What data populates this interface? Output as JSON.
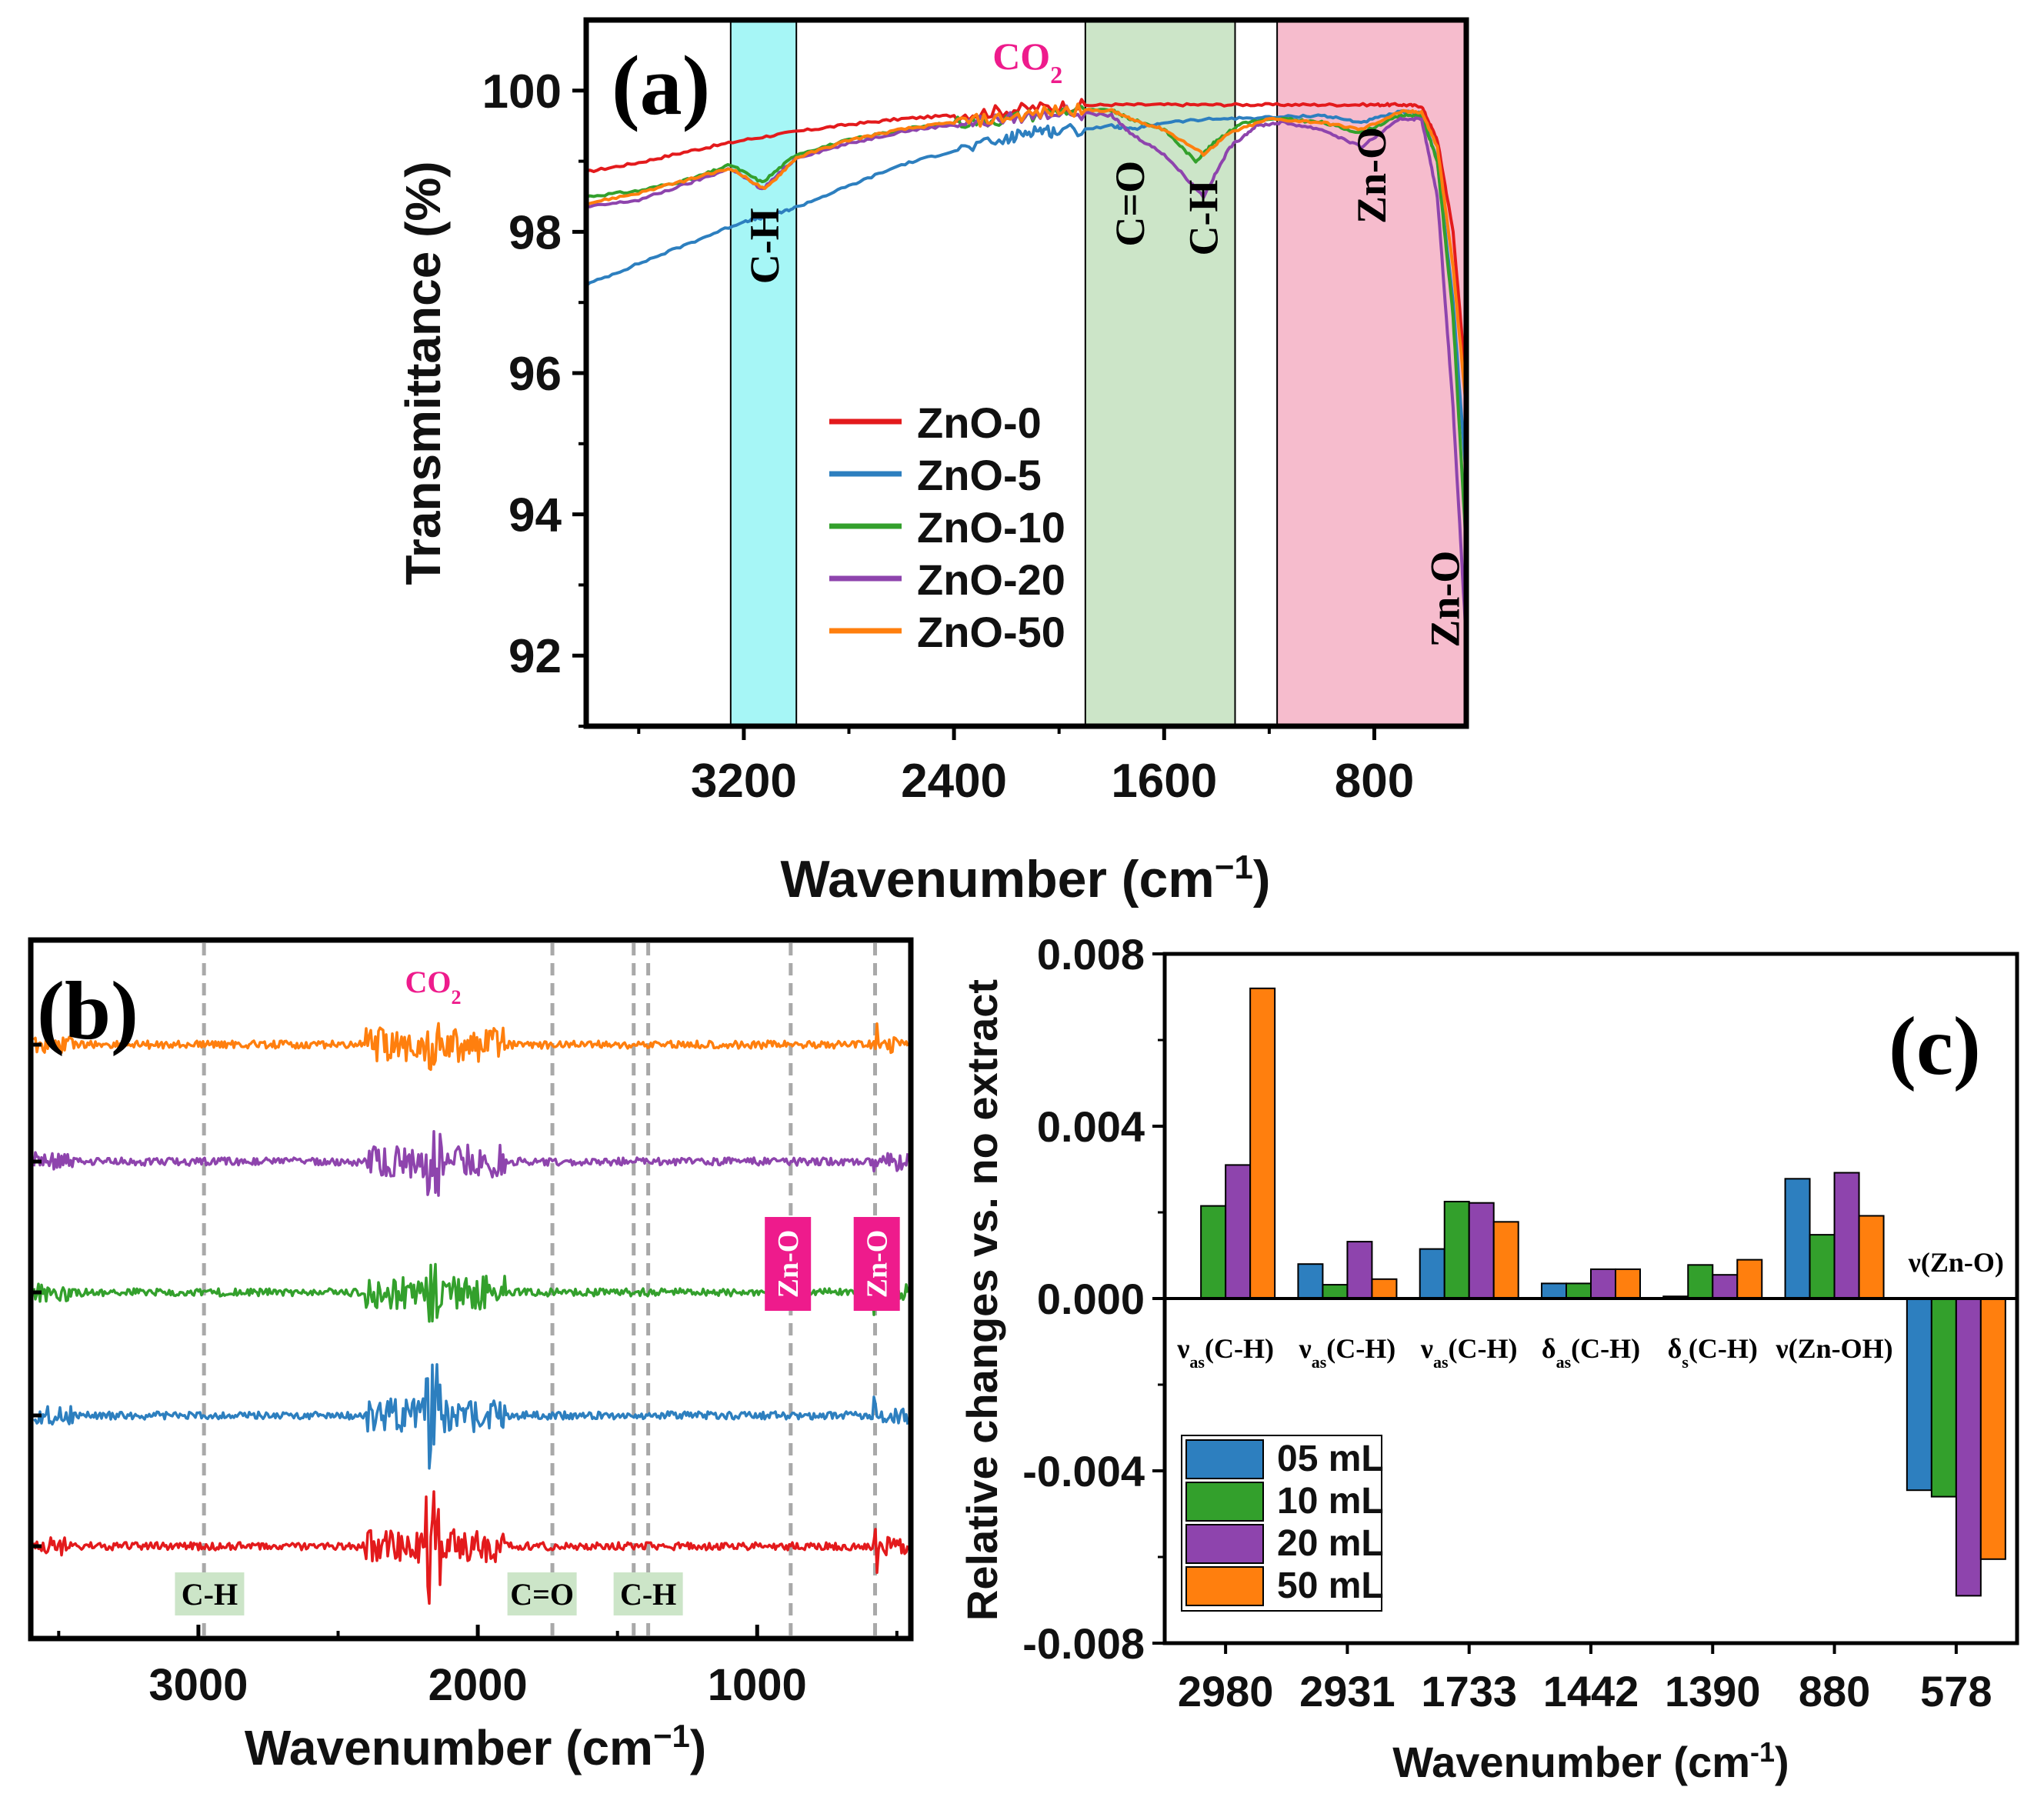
{
  "chart_data": [
    {
      "panel": "(a)",
      "type": "line",
      "xlabel": "Wavenumber (cm",
      "xlabel_sup": "−1",
      "xlabel_tail": ")",
      "ylabel": "Transmittance (%)",
      "xlim": [
        3800,
        450
      ],
      "ylim": [
        91,
        101
      ],
      "xticks": [
        {
          "v": 3200,
          "t": "3200"
        },
        {
          "v": 2400,
          "t": "2400"
        },
        {
          "v": 1600,
          "t": "1600"
        },
        {
          "v": 800,
          "t": "800"
        }
      ],
      "yticks": [
        {
          "v": 92,
          "t": "92"
        },
        {
          "v": 94,
          "t": "94"
        },
        {
          "v": 96,
          "t": "96"
        },
        {
          "v": 98,
          "t": "98"
        },
        {
          "v": 100,
          "t": "100"
        }
      ],
      "bands": [
        {
          "from": 3250,
          "to": 3000,
          "color": "#a6f6f6"
        },
        {
          "from": 1900,
          "to": 1330,
          "color": "#cce5c8"
        },
        {
          "from": 1170,
          "to": 450,
          "color": "#f6bccd"
        }
      ],
      "annotations": [
        {
          "text": "C-H",
          "x": 3120,
          "y": 97.8,
          "rotate": true
        },
        {
          "text": "C=O",
          "x": 1730,
          "y": 98.4,
          "rotate": true
        },
        {
          "text": "C-H",
          "x": 1450,
          "y": 98.2,
          "rotate": true
        },
        {
          "text": "Zn-O",
          "x": 810,
          "y": 98.8,
          "rotate": true
        },
        {
          "text": "Zn-O",
          "x": 530,
          "y": 92.8,
          "rotate": true
        }
      ],
      "co2_label": {
        "main": "CO",
        "sub": "2",
        "x": 2120,
        "y": 100.6
      },
      "series": [
        {
          "name": "ZnO-0",
          "color": "#e31a1c",
          "points": [
            [
              3800,
              98.85
            ],
            [
              3600,
              98.98
            ],
            [
              3400,
              99.15
            ],
            [
              3200,
              99.3
            ],
            [
              3000,
              99.42
            ],
            [
              2800,
              99.52
            ],
            [
              2600,
              99.6
            ],
            [
              2400,
              99.65
            ],
            [
              2200,
              99.72
            ],
            [
              2000,
              99.78
            ],
            [
              1800,
              99.8
            ],
            [
              1600,
              99.8
            ],
            [
              1400,
              99.8
            ],
            [
              1200,
              99.8
            ],
            [
              1000,
              99.8
            ],
            [
              800,
              99.8
            ],
            [
              700,
              99.8
            ],
            [
              620,
              99.78
            ],
            [
              560,
              99.3
            ],
            [
              500,
              98
            ],
            [
              450,
              95.8
            ]
          ]
        },
        {
          "name": "ZnO-5",
          "color": "#2d7fbf",
          "points": [
            [
              3800,
              97.25
            ],
            [
              3600,
              97.55
            ],
            [
              3400,
              97.85
            ],
            [
              3200,
              98.15
            ],
            [
              3100,
              98.22
            ],
            [
              3000,
              98.35
            ],
            [
              2800,
              98.65
            ],
            [
              2600,
              98.95
            ],
            [
              2400,
              99.15
            ],
            [
              2200,
              99.3
            ],
            [
              2100,
              99.45
            ],
            [
              2000,
              99.42
            ],
            [
              1800,
              99.5
            ],
            [
              1720,
              99.45
            ],
            [
              1600,
              99.55
            ],
            [
              1400,
              99.6
            ],
            [
              1200,
              99.62
            ],
            [
              1000,
              99.65
            ],
            [
              850,
              99.55
            ],
            [
              700,
              99.7
            ],
            [
              620,
              99.68
            ],
            [
              560,
              99
            ],
            [
              500,
              97
            ],
            [
              450,
              94.5
            ]
          ]
        },
        {
          "name": "ZnO-10",
          "color": "#33a02c",
          "points": [
            [
              3800,
              98.5
            ],
            [
              3600,
              98.58
            ],
            [
              3400,
              98.75
            ],
            [
              3250,
              98.95
            ],
            [
              3130,
              98.7
            ],
            [
              3000,
              99.1
            ],
            [
              2800,
              99.3
            ],
            [
              2600,
              99.45
            ],
            [
              2400,
              99.55
            ],
            [
              2200,
              99.6
            ],
            [
              2000,
              99.72
            ],
            [
              1800,
              99.72
            ],
            [
              1730,
              99.6
            ],
            [
              1600,
              99.45
            ],
            [
              1480,
              99
            ],
            [
              1400,
              99.3
            ],
            [
              1300,
              99.55
            ],
            [
              1150,
              99.6
            ],
            [
              1000,
              99.55
            ],
            [
              850,
              99.4
            ],
            [
              700,
              99.65
            ],
            [
              620,
              99.65
            ],
            [
              560,
              99
            ],
            [
              500,
              96.8
            ],
            [
              450,
              93.5
            ]
          ]
        },
        {
          "name": "ZnO-20",
          "color": "#8e44ad",
          "points": [
            [
              3800,
              98.35
            ],
            [
              3600,
              98.45
            ],
            [
              3400,
              98.7
            ],
            [
              3250,
              98.9
            ],
            [
              3130,
              98.6
            ],
            [
              3000,
              99.05
            ],
            [
              2800,
              99.25
            ],
            [
              2600,
              99.42
            ],
            [
              2400,
              99.52
            ],
            [
              2200,
              99.6
            ],
            [
              2000,
              99.7
            ],
            [
              1800,
              99.65
            ],
            [
              1730,
              99.4
            ],
            [
              1600,
              99.1
            ],
            [
              1450,
              98.5
            ],
            [
              1350,
              99.2
            ],
            [
              1250,
              99.5
            ],
            [
              1150,
              99.55
            ],
            [
              1000,
              99.45
            ],
            [
              850,
              99.2
            ],
            [
              700,
              99.6
            ],
            [
              620,
              99.6
            ],
            [
              560,
              98.5
            ],
            [
              500,
              95.5
            ],
            [
              450,
              92.2
            ]
          ]
        },
        {
          "name": "ZnO-50",
          "color": "#ff7f0e",
          "points": [
            [
              3800,
              98.4
            ],
            [
              3600,
              98.55
            ],
            [
              3400,
              98.75
            ],
            [
              3250,
              98.9
            ],
            [
              3120,
              98.6
            ],
            [
              3000,
              99.05
            ],
            [
              2800,
              99.3
            ],
            [
              2600,
              99.45
            ],
            [
              2400,
              99.55
            ],
            [
              2200,
              99.62
            ],
            [
              2000,
              99.72
            ],
            [
              1800,
              99.72
            ],
            [
              1730,
              99.6
            ],
            [
              1600,
              99.45
            ],
            [
              1450,
              99.1
            ],
            [
              1350,
              99.4
            ],
            [
              1200,
              99.6
            ],
            [
              1000,
              99.55
            ],
            [
              850,
              99.45
            ],
            [
              700,
              99.7
            ],
            [
              620,
              99.7
            ],
            [
              560,
              99.2
            ],
            [
              500,
              97.5
            ],
            [
              450,
              95.5
            ]
          ]
        }
      ],
      "legend": "center-left"
    },
    {
      "panel": "(b)",
      "type": "line",
      "xlabel": "Wavenumber (cm",
      "xlabel_sup": "−1",
      "xlabel_tail": ")",
      "xlim": [
        3600,
        450
      ],
      "xticks": [
        {
          "v": 3000,
          "t": "3000"
        },
        {
          "v": 2000,
          "t": "2000"
        },
        {
          "v": 1000,
          "t": "1000"
        }
      ],
      "dashed_lines": [
        2980,
        1733,
        1442,
        1390,
        880,
        578
      ],
      "co2_label": {
        "main": "CO",
        "sub": "2",
        "x": 2160
      },
      "labels_bottom": [
        {
          "text": "C-H",
          "x": 2960
        },
        {
          "text": "C=O",
          "x": 1770
        },
        {
          "text": "C-H",
          "x": 1390
        }
      ],
      "labels_pink": [
        {
          "text": "Zn-O",
          "x": 890
        },
        {
          "text": "Zn-O",
          "x": 572
        }
      ],
      "series": [
        {
          "name": "ZnO-50",
          "color": "#ff7f0e",
          "offset": 4
        },
        {
          "name": "ZnO-20",
          "color": "#8e44ad",
          "offset": 3
        },
        {
          "name": "ZnO-10",
          "color": "#33a02c",
          "offset": 2
        },
        {
          "name": "ZnO-5",
          "color": "#2d7fbf",
          "offset": 1
        },
        {
          "name": "ZnO-0",
          "color": "#e31a1c",
          "offset": 0
        }
      ]
    },
    {
      "panel": "(c)",
      "type": "bar",
      "xlabel": "Wavenumber (cm",
      "xlabel_sup": "-1",
      "xlabel_tail": ")",
      "ylabel": "Relative changes vs. no extract",
      "ylim": [
        -0.008,
        0.008
      ],
      "yticks": [
        {
          "v": -0.008,
          "t": "-0.008"
        },
        {
          "v": -0.004,
          "t": "-0.004"
        },
        {
          "v": 0,
          "t": "0.000"
        },
        {
          "v": 0.004,
          "t": "0.004"
        },
        {
          "v": 0.008,
          "t": "0.008"
        }
      ],
      "categories": [
        "2980",
        "2931",
        "1733",
        "1442",
        "1390",
        "880",
        "578"
      ],
      "mode_labels": [
        {
          "base": "ν",
          "sub": "as",
          "rest": "(C-H)"
        },
        {
          "base": "ν",
          "sub": "as",
          "rest": "(C-H)"
        },
        {
          "base": "ν",
          "sub": "as",
          "rest": "(C-H)"
        },
        {
          "base": "δ",
          "sub": "as",
          "rest": "(C-H)"
        },
        {
          "base": "δ",
          "sub": "s",
          "rest": "(C-H)"
        },
        {
          "base": "ν",
          "sub": "",
          "rest": "(Zn-OH)"
        },
        {
          "base": "ν",
          "sub": "",
          "rest": "(Zn-O)"
        }
      ],
      "series": [
        {
          "name": "05 mL",
          "color": "#2d7fbf",
          "values": [
            0.0,
            0.0008,
            0.00115,
            0.00035,
            5e-05,
            0.00278,
            -0.00445
          ]
        },
        {
          "name": "10 mL",
          "color": "#33a02c",
          "values": [
            0.00215,
            0.00032,
            0.00225,
            0.00035,
            0.00078,
            0.00148,
            -0.0046
          ]
        },
        {
          "name": "20 mL",
          "color": "#8e44ad",
          "values": [
            0.0031,
            0.00132,
            0.00222,
            0.00068,
            0.00055,
            0.00292,
            -0.0069
          ]
        },
        {
          "name": "50 mL",
          "color": "#ff7f0e",
          "values": [
            0.0072,
            0.00045,
            0.00178,
            0.00068,
            0.0009,
            0.00192,
            -0.00605
          ]
        }
      ],
      "legend": "lower-left"
    }
  ]
}
